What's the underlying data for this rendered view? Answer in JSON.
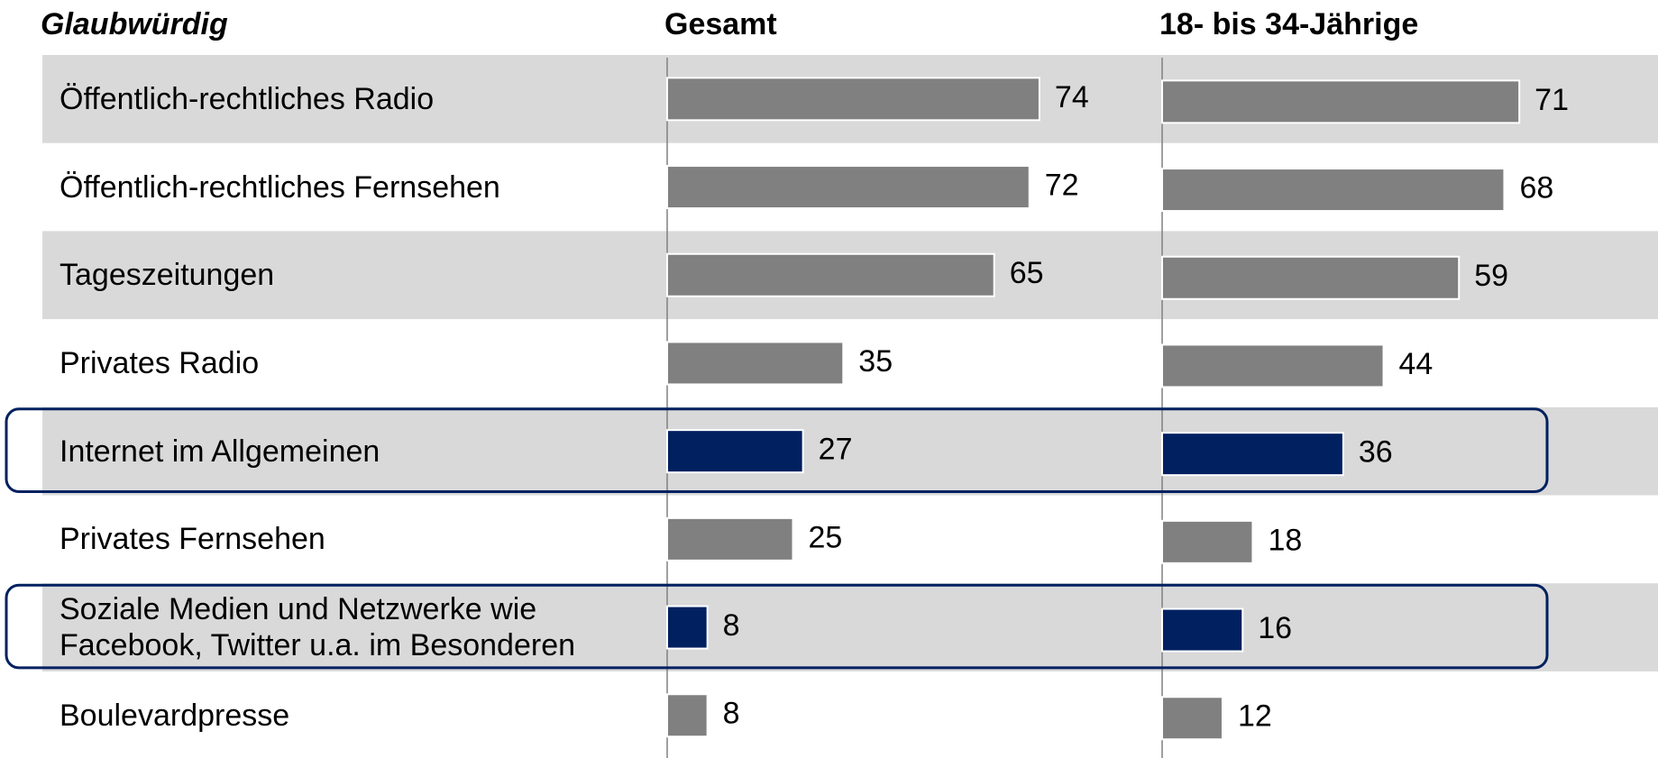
{
  "chart_data": {
    "type": "bar",
    "orientation": "horizontal",
    "title": "Glaubwürdig",
    "categories": [
      "Öffentlich-rechtliches Radio",
      "Öffentlich-rechtliches Fernsehen",
      "Tageszeitungen",
      "Privates Radio",
      "Internet im Allgemeinen",
      "Privates Fernsehen",
      "Soziale Medien und Netzwerke wie\nFacebook, Twitter u.a. im Besonderen",
      "Boulevardpresse"
    ],
    "series": [
      {
        "name": "Gesamt",
        "color": "#808080",
        "values": [
          74,
          72,
          65,
          35,
          27,
          25,
          8,
          8
        ]
      },
      {
        "name": "18- bis 34-Jährige",
        "color": "#808080",
        "values": [
          71,
          68,
          59,
          44,
          36,
          18,
          16,
          12
        ]
      }
    ],
    "highlighted": [
      4,
      6
    ],
    "highlight_color": "#002060"
  }
}
